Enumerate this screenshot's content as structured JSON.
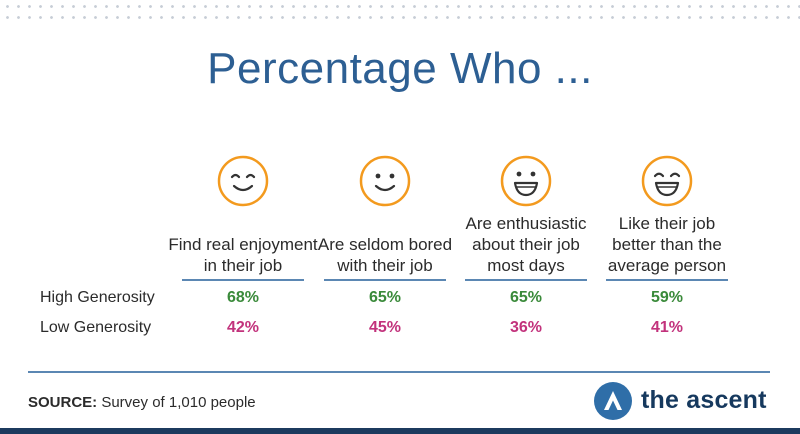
{
  "title": "Percentage Who ...",
  "colors": {
    "title": "#2d5f93",
    "high": "#3a8a3a",
    "low": "#c2327c",
    "icon": "#f39a1e",
    "rule": "#5b87b3",
    "logo": "#16395e"
  },
  "chart_data": {
    "type": "table",
    "title": "Percentage Who ...",
    "categories": [
      "Find real enjoyment in their job",
      "Are seldom bored with their job",
      "Are enthusiastic about their job most days",
      "Like their job better than the average person"
    ],
    "series": [
      {
        "name": "High Generosity",
        "values": [
          68,
          65,
          65,
          59
        ]
      },
      {
        "name": "Low Generosity",
        "values": [
          42,
          45,
          36,
          41
        ]
      }
    ]
  },
  "columns": [
    {
      "label": "Find real enjoyment\nin their job",
      "icon": "smile-closed-eyes-icon",
      "high": "68%",
      "low": "42%"
    },
    {
      "label": "Are seldom bored\nwith their job",
      "icon": "smile-icon",
      "high": "65%",
      "low": "45%"
    },
    {
      "label": "Are enthusiastic\nabout their job\nmost days",
      "icon": "grin-icon",
      "high": "65%",
      "low": "36%"
    },
    {
      "label": "Like their job\nbetter than the\naverage person",
      "icon": "grin-closed-eyes-icon",
      "high": "59%",
      "low": "41%"
    }
  ],
  "rows": {
    "high_label": "High Generosity",
    "low_label": "Low Generosity"
  },
  "source": {
    "label": "SOURCE:",
    "text": " Survey of 1,010 people"
  },
  "logo": {
    "text": "the ascent",
    "icon": "ascent-logo-icon"
  }
}
